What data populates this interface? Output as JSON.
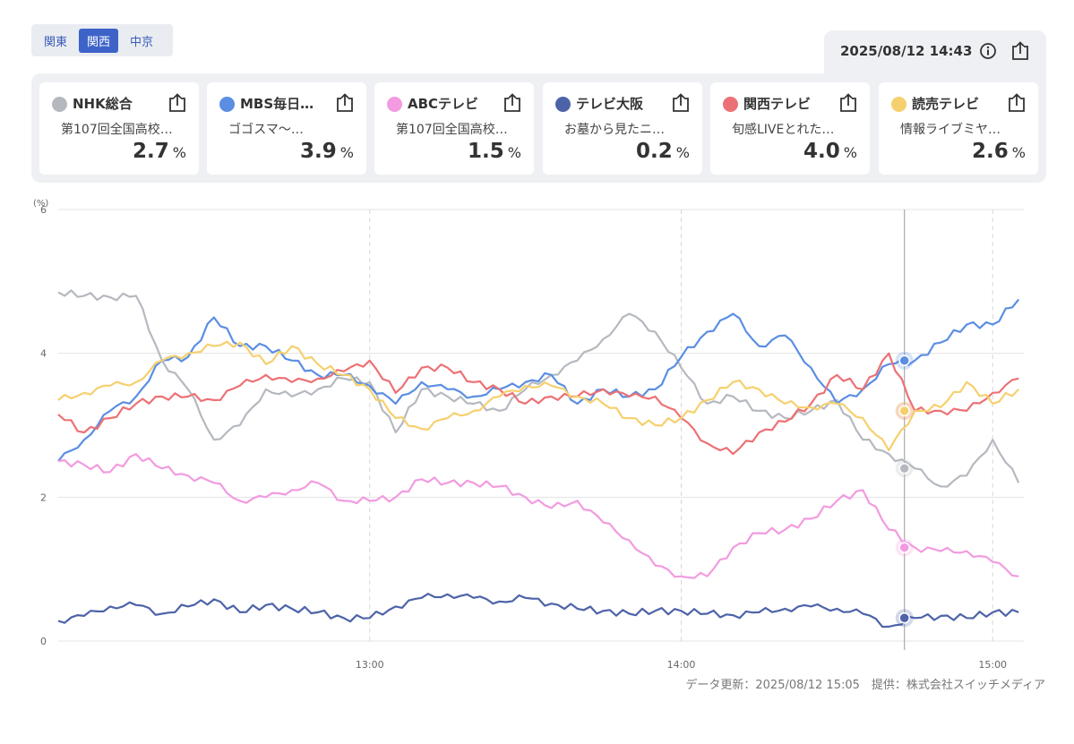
{
  "regions": [
    "関東",
    "関西",
    "中京"
  ],
  "active_region": "関西",
  "timestamp": "2025/08/12 14:43",
  "channels": [
    {
      "name": "NHK総合",
      "program": "第107回全国高校…",
      "rating": "2.7",
      "unit": "%",
      "color": "#b5b9bf"
    },
    {
      "name": "MBS毎日…",
      "program": "ゴゴスマ〜…",
      "rating": "3.9",
      "unit": "%",
      "color": "#5b8ee3"
    },
    {
      "name": "ABCテレビ",
      "program": "第107回全国高校…",
      "rating": "1.5",
      "unit": "%",
      "color": "#f29be0"
    },
    {
      "name": "テレビ大阪",
      "program": "お墓から見たニ…",
      "rating": "0.2",
      "unit": "%",
      "color": "#4d63a8"
    },
    {
      "name": "関西テレビ",
      "program": "旬感LIVEとれた…",
      "rating": "4.0",
      "unit": "%",
      "color": "#ec7175"
    },
    {
      "name": "読売テレビ",
      "program": "情報ライブミヤ…",
      "rating": "2.6",
      "unit": "%",
      "color": "#f5d06e"
    }
  ],
  "footer": "データ更新：2025/08/12 15:05　提供：株式会社スイッチメディア",
  "icons": {
    "info": "info-icon",
    "share": "share-icon"
  },
  "chart_data": {
    "type": "line",
    "ylabel": "(%)",
    "ylim": [
      0,
      6
    ],
    "yticks": [
      0,
      2,
      4,
      6
    ],
    "xlim": [
      "12:00",
      "15:06"
    ],
    "xticks": [
      "13:00",
      "14:00",
      "15:00"
    ],
    "cursor_time": "14:43",
    "grid": true,
    "series": [
      {
        "name": "NHK総合",
        "color": "#b5b9bf",
        "x": [
          "12:00",
          "12:05",
          "12:10",
          "12:15",
          "12:20",
          "12:25",
          "12:30",
          "12:35",
          "12:40",
          "12:45",
          "12:50",
          "12:55",
          "13:00",
          "13:05",
          "13:10",
          "13:15",
          "13:20",
          "13:25",
          "13:30",
          "13:35",
          "13:40",
          "13:45",
          "13:50",
          "13:55",
          "14:00",
          "14:05",
          "14:10",
          "14:15",
          "14:20",
          "14:25",
          "14:30",
          "14:35",
          "14:40",
          "14:45",
          "14:50",
          "14:55",
          "15:00",
          "15:05"
        ],
        "values": [
          4.85,
          4.8,
          4.78,
          4.8,
          3.9,
          3.5,
          2.8,
          3.0,
          3.5,
          3.4,
          3.5,
          3.65,
          3.6,
          2.9,
          3.5,
          3.4,
          3.3,
          3.2,
          3.5,
          3.7,
          3.9,
          4.2,
          4.55,
          4.3,
          3.8,
          3.3,
          3.4,
          3.2,
          3.1,
          3.2,
          3.35,
          2.8,
          2.6,
          2.4,
          2.15,
          2.3,
          2.8,
          2.2
        ]
      },
      {
        "name": "MBS毎日…",
        "color": "#5b8ee3",
        "x": [
          "12:00",
          "12:05",
          "12:10",
          "12:15",
          "12:20",
          "12:25",
          "12:30",
          "12:35",
          "12:40",
          "12:45",
          "12:50",
          "12:55",
          "13:00",
          "13:05",
          "13:10",
          "13:15",
          "13:20",
          "13:25",
          "13:30",
          "13:35",
          "13:40",
          "13:45",
          "13:50",
          "13:55",
          "14:00",
          "14:05",
          "14:10",
          "14:15",
          "14:20",
          "14:25",
          "14:30",
          "14:35",
          "14:40",
          "14:45",
          "14:50",
          "14:55",
          "15:00",
          "15:05"
        ],
        "values": [
          2.5,
          2.8,
          3.2,
          3.4,
          3.9,
          3.95,
          4.5,
          4.1,
          4.1,
          3.9,
          3.7,
          3.7,
          3.55,
          3.3,
          3.6,
          3.5,
          3.4,
          3.5,
          3.6,
          3.7,
          3.3,
          3.5,
          3.4,
          3.5,
          3.95,
          4.3,
          4.55,
          4.1,
          4.25,
          3.8,
          3.3,
          3.5,
          3.85,
          3.9,
          4.15,
          4.4,
          4.4,
          4.75
        ]
      },
      {
        "name": "ABCテレビ",
        "color": "#f29be0",
        "x": [
          "12:00",
          "12:05",
          "12:10",
          "12:15",
          "12:20",
          "12:25",
          "12:30",
          "12:35",
          "12:40",
          "12:45",
          "12:50",
          "12:55",
          "13:00",
          "13:05",
          "13:10",
          "13:15",
          "13:20",
          "13:25",
          "13:30",
          "13:35",
          "13:40",
          "13:45",
          "13:50",
          "13:55",
          "14:00",
          "14:05",
          "14:10",
          "14:15",
          "14:20",
          "14:25",
          "14:30",
          "14:35",
          "14:40",
          "14:45",
          "14:50",
          "14:55",
          "15:00",
          "15:05"
        ],
        "values": [
          2.5,
          2.45,
          2.35,
          2.6,
          2.4,
          2.3,
          2.2,
          1.95,
          2.0,
          2.1,
          2.2,
          1.95,
          1.95,
          2.0,
          2.25,
          2.2,
          2.2,
          2.15,
          2.0,
          1.85,
          1.95,
          1.65,
          1.4,
          1.05,
          0.9,
          0.9,
          1.3,
          1.5,
          1.55,
          1.7,
          1.95,
          2.1,
          1.55,
          1.3,
          1.25,
          1.25,
          1.1,
          0.9
        ]
      },
      {
        "name": "テレビ大阪",
        "color": "#4d63a8",
        "x": [
          "12:00",
          "12:05",
          "12:10",
          "12:15",
          "12:20",
          "12:25",
          "12:30",
          "12:35",
          "12:40",
          "12:45",
          "12:50",
          "12:55",
          "13:00",
          "13:05",
          "13:10",
          "13:15",
          "13:20",
          "13:25",
          "13:30",
          "13:35",
          "13:40",
          "13:45",
          "13:50",
          "13:55",
          "14:00",
          "14:05",
          "14:10",
          "14:15",
          "14:20",
          "14:25",
          "14:30",
          "14:35",
          "14:40",
          "14:45",
          "14:50",
          "14:55",
          "15:00",
          "15:05"
        ],
        "values": [
          0.28,
          0.35,
          0.48,
          0.5,
          0.38,
          0.48,
          0.58,
          0.4,
          0.5,
          0.45,
          0.4,
          0.32,
          0.32,
          0.48,
          0.6,
          0.65,
          0.6,
          0.55,
          0.6,
          0.52,
          0.45,
          0.42,
          0.38,
          0.42,
          0.42,
          0.38,
          0.36,
          0.4,
          0.45,
          0.48,
          0.45,
          0.38,
          0.2,
          0.32,
          0.35,
          0.32,
          0.4,
          0.4
        ]
      },
      {
        "name": "関西テレビ",
        "color": "#ec7175",
        "x": [
          "12:00",
          "12:05",
          "12:10",
          "12:15",
          "12:20",
          "12:25",
          "12:30",
          "12:35",
          "12:40",
          "12:45",
          "12:50",
          "12:55",
          "13:00",
          "13:05",
          "13:10",
          "13:15",
          "13:20",
          "13:25",
          "13:30",
          "13:35",
          "13:40",
          "13:45",
          "13:50",
          "13:55",
          "14:00",
          "14:05",
          "14:10",
          "14:15",
          "14:20",
          "14:25",
          "14:30",
          "14:35",
          "14:40",
          "14:45",
          "14:50",
          "14:55",
          "15:00",
          "15:05"
        ],
        "values": [
          3.15,
          2.9,
          3.1,
          3.3,
          3.4,
          3.4,
          3.35,
          3.55,
          3.7,
          3.6,
          3.65,
          3.75,
          3.9,
          3.45,
          3.8,
          3.8,
          3.6,
          3.5,
          3.3,
          3.4,
          3.4,
          3.5,
          3.4,
          3.4,
          3.1,
          2.75,
          2.6,
          2.9,
          3.05,
          3.3,
          3.7,
          3.5,
          4.0,
          3.2,
          3.2,
          3.2,
          3.45,
          3.65
        ]
      },
      {
        "name": "読売テレビ",
        "color": "#f5d06e",
        "x": [
          "12:00",
          "12:05",
          "12:10",
          "12:15",
          "12:20",
          "12:25",
          "12:30",
          "12:35",
          "12:40",
          "12:45",
          "12:50",
          "12:55",
          "13:00",
          "13:05",
          "13:10",
          "13:15",
          "13:20",
          "13:25",
          "13:30",
          "13:35",
          "13:40",
          "13:45",
          "13:50",
          "13:55",
          "14:00",
          "14:05",
          "14:10",
          "14:15",
          "14:20",
          "14:25",
          "14:30",
          "14:35",
          "14:40",
          "14:45",
          "14:50",
          "14:55",
          "15:00",
          "15:05"
        ],
        "values": [
          3.35,
          3.45,
          3.55,
          3.6,
          3.9,
          4.0,
          4.1,
          4.15,
          3.85,
          4.1,
          3.85,
          3.7,
          3.5,
          3.1,
          2.95,
          3.1,
          3.2,
          3.4,
          3.55,
          3.55,
          3.4,
          3.3,
          3.1,
          3.0,
          3.1,
          3.35,
          3.6,
          3.5,
          3.3,
          3.25,
          3.3,
          3.1,
          2.65,
          3.2,
          3.25,
          3.6,
          3.3,
          3.5
        ]
      }
    ]
  }
}
